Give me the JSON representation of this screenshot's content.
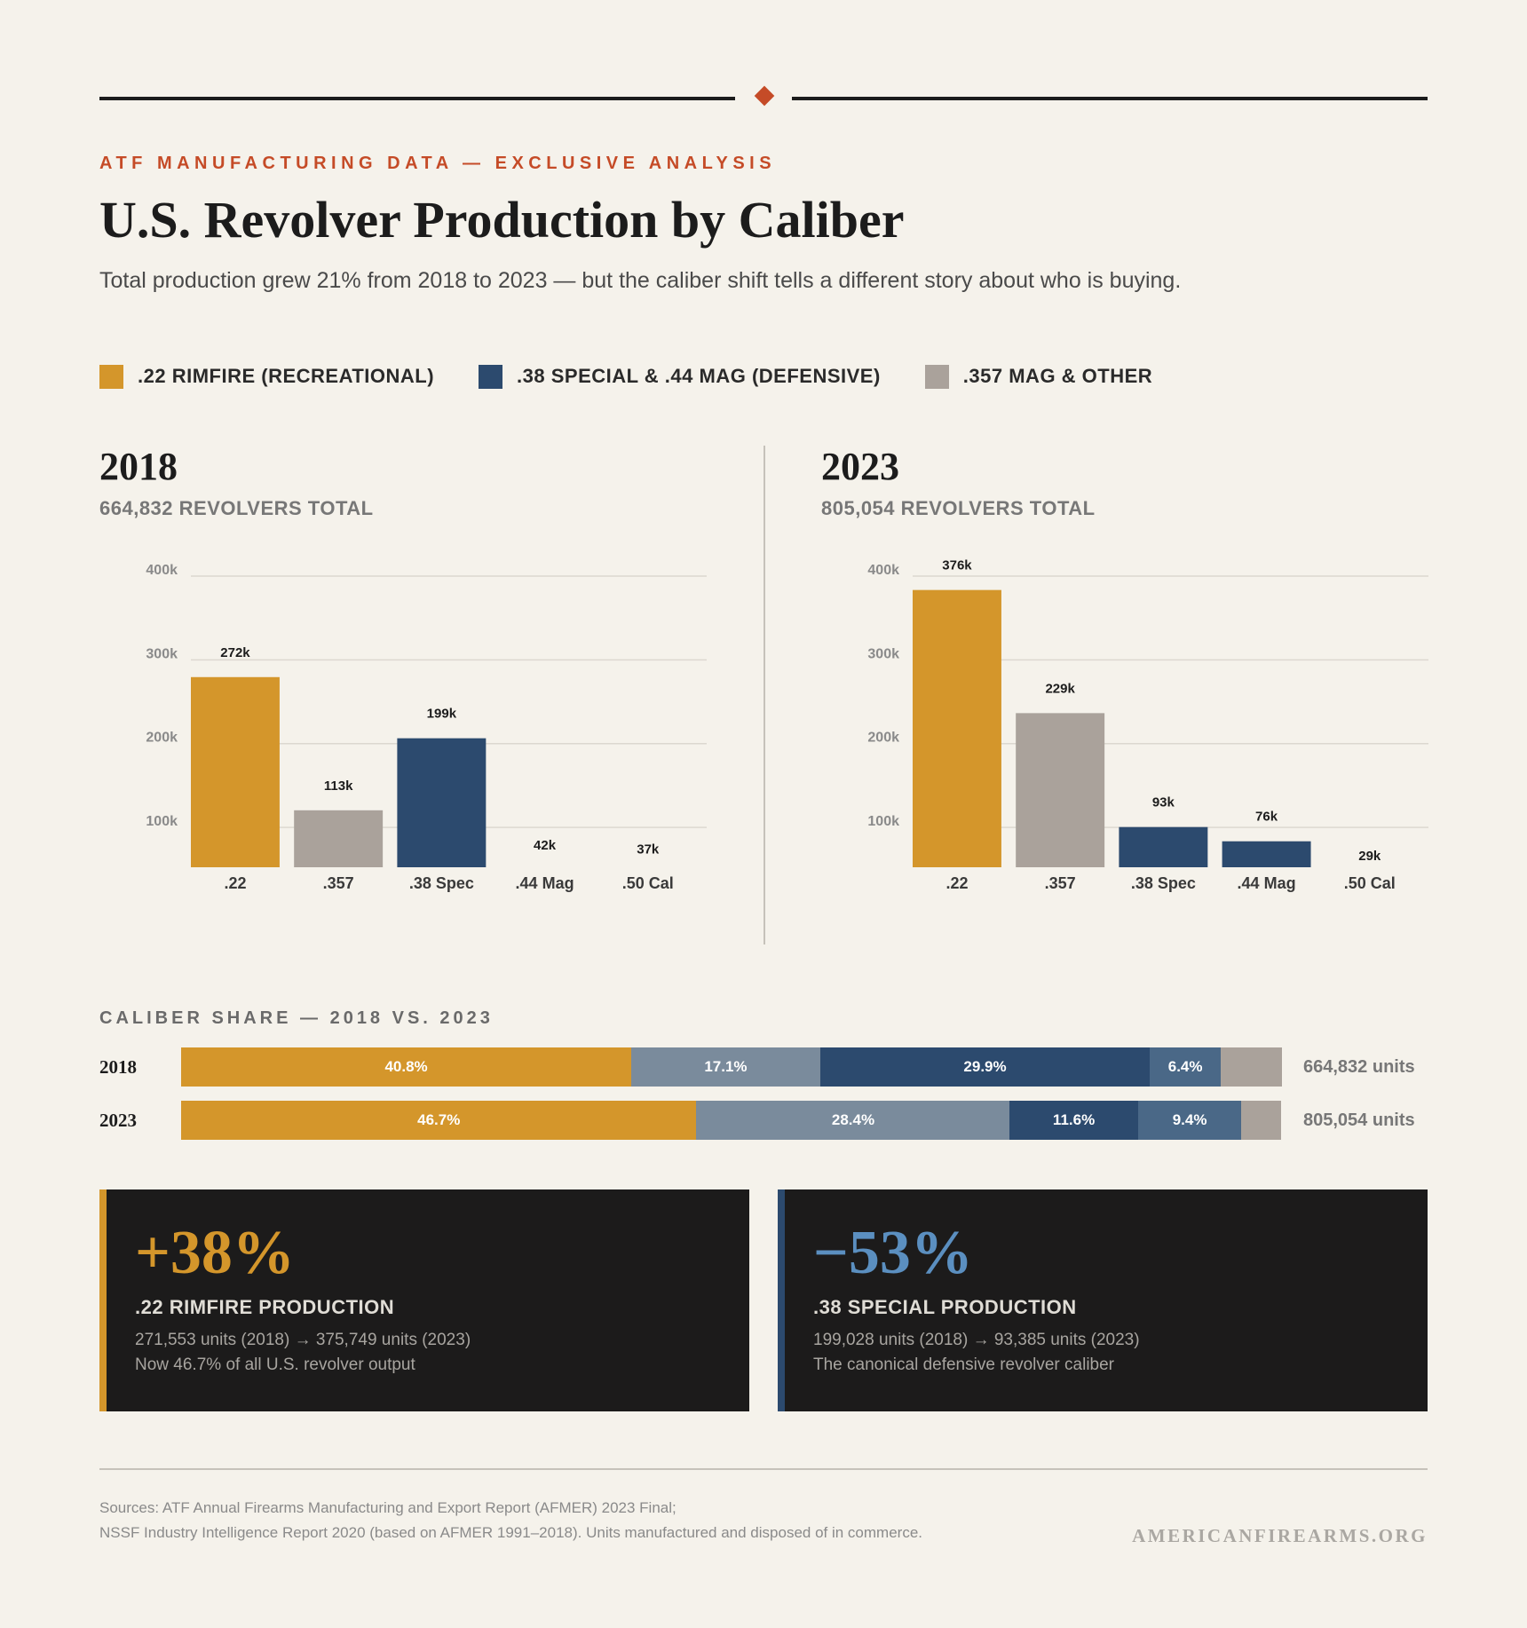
{
  "header": {
    "kicker": "ATF MANUFACTURING DATA — EXCLUSIVE ANALYSIS",
    "title": "U.S. Revolver Production by Caliber",
    "subtitle": "Total production grew 21% from 2018 to 2023 — but the caliber shift tells a different story about who is buying."
  },
  "legend": [
    {
      "label": ".22 RIMFIRE (RECREATIONAL)",
      "color": "#d4962b"
    },
    {
      "label": ".38 SPECIAL & .44 MAG (DEFENSIVE)",
      "color": "#2c4a6e"
    },
    {
      "label": ".357 MAG & OTHER",
      "color": "#aaa29b"
    }
  ],
  "panels": [
    {
      "year": "2018",
      "total_label": "664,832 REVOLVERS TOTAL"
    },
    {
      "year": "2023",
      "total_label": "805,054 REVOLVERS TOTAL"
    }
  ],
  "chart_data": [
    {
      "type": "bar",
      "title": "2018",
      "categories": [
        ".22",
        ".357",
        ".38 Spec",
        ".44 Mag",
        ".50 Cal"
      ],
      "values": [
        272,
        113,
        199,
        42,
        37
      ],
      "value_labels": [
        "272k",
        "113k",
        "199k",
        "42k",
        "37k"
      ],
      "colors": [
        "#d4962b",
        "#aaa29b",
        "#2c4a6e",
        "#2c4a6e",
        "#aaa29b"
      ],
      "yticks": [
        100,
        200,
        300,
        400
      ],
      "ytick_labels": [
        "100k",
        "200k",
        "300k",
        "400k"
      ],
      "ylim": [
        45,
        400
      ],
      "grid": true
    },
    {
      "type": "bar",
      "title": "2023",
      "categories": [
        ".22",
        ".357",
        ".38 Spec",
        ".44 Mag",
        ".50 Cal"
      ],
      "values": [
        376,
        229,
        93,
        76,
        29
      ],
      "value_labels": [
        "376k",
        "229k",
        "93k",
        "76k",
        "29k"
      ],
      "colors": [
        "#d4962b",
        "#aaa29b",
        "#2c4a6e",
        "#2c4a6e",
        "#aaa29b"
      ],
      "yticks": [
        100,
        200,
        300,
        400
      ],
      "ytick_labels": [
        "100k",
        "200k",
        "300k",
        "400k"
      ],
      "ylim": [
        45,
        400
      ],
      "grid": true
    }
  ],
  "share": {
    "title": "CALIBER SHARE — 2018 VS. 2023",
    "rows": [
      {
        "year": "2018",
        "units": "664,832 units",
        "segments": [
          {
            "value": 40.8,
            "label": "40.8%",
            "color": "#d4962b"
          },
          {
            "value": 17.1,
            "label": "17.1%",
            "color": "#7a8b9c"
          },
          {
            "value": 29.9,
            "label": "29.9%",
            "color": "#2c4a6e"
          },
          {
            "value": 6.4,
            "label": "6.4%",
            "color": "#4a6887"
          },
          {
            "value": 5.6,
            "label": "",
            "color": "#aaa29b"
          }
        ]
      },
      {
        "year": "2023",
        "units": "805,054 units",
        "segments": [
          {
            "value": 46.7,
            "label": "46.7%",
            "color": "#d4962b"
          },
          {
            "value": 28.4,
            "label": "28.4%",
            "color": "#7a8b9c"
          },
          {
            "value": 11.6,
            "label": "11.6%",
            "color": "#2c4a6e"
          },
          {
            "value": 9.4,
            "label": "9.4%",
            "color": "#4a6887"
          },
          {
            "value": 3.6,
            "label": "",
            "color": "#aaa29b"
          }
        ]
      }
    ]
  },
  "cards": [
    {
      "big": "+38%",
      "label": ".22 RIMFIRE PRODUCTION",
      "line1": "271,553 units (2018) → 375,749 units (2023)",
      "line2": "Now 46.7% of all U.S. revolver output",
      "color": "#d4962b"
    },
    {
      "big": "−53%",
      "label": ".38 SPECIAL PRODUCTION",
      "line1": "199,028 units (2018) → 93,385 units (2023)",
      "line2": "The canonical defensive revolver caliber",
      "color": "#5b8fc0",
      "accent": "#2c4a6e"
    }
  ],
  "footer": {
    "source1": "Sources: ATF Annual Firearms Manufacturing and Export Report (AFMER) 2023 Final;",
    "source2": "NSSF Industry Intelligence Report 2020 (based on AFMER 1991–2018). Units manufactured and disposed of in commerce.",
    "brand": "AMERICANFIREARMS.ORG"
  }
}
